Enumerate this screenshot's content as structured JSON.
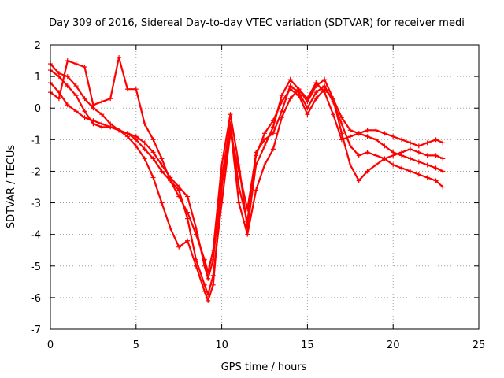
{
  "chart_data": {
    "type": "scatter",
    "title": "Day 309 of 2016, Sidereal Day-to-day VTEC variation (SDTVAR) for receiver medi",
    "xlabel": "GPS time / hours",
    "ylabel": "SDTVAR / TECUs",
    "xlim": [
      0,
      25
    ],
    "ylim": [
      -7,
      2
    ],
    "xticks": [
      "0",
      "5",
      "10",
      "15",
      "20",
      "25"
    ],
    "yticks": [
      "2",
      "1",
      "0",
      "-1",
      "-2",
      "-3",
      "-4",
      "-5",
      "-6",
      "-7"
    ],
    "grid": true,
    "marker": "plus",
    "color": "#ff0000",
    "series": [
      {
        "x": [
          0,
          0.5,
          1.0,
          1.5,
          2.0,
          2.5,
          3.0,
          3.5,
          4.0,
          4.5,
          5.0,
          5.5,
          6.0,
          6.5,
          7.0,
          7.5,
          8.0,
          8.5,
          9.0,
          9.2,
          9.5,
          10.0,
          10.5,
          11.0,
          11.5,
          12.0,
          12.5,
          13.0,
          13.5,
          14.0,
          14.5,
          15.0,
          15.5,
          16.0,
          16.5,
          17.0,
          17.5,
          18.0,
          18.5,
          19.0,
          19.5,
          20.0,
          20.5,
          21.0,
          21.5,
          22.0,
          22.5,
          22.9
        ],
        "y": [
          1.4,
          1.1,
          1.0,
          0.7,
          0.3,
          0.0,
          -0.2,
          -0.5,
          -0.7,
          -0.8,
          -1.0,
          -1.3,
          -1.6,
          -2.0,
          -2.3,
          -2.6,
          -3.5,
          -4.8,
          -5.6,
          -5.9,
          -5.3,
          -3.0,
          -0.8,
          -2.0,
          -3.2,
          -1.5,
          -0.8,
          -0.4,
          0.2,
          0.6,
          0.4,
          -0.2,
          0.3,
          0.6,
          0.3,
          -0.3,
          -0.7,
          -0.8,
          -0.9,
          -1.0,
          -1.2,
          -1.4,
          -1.5,
          -1.6,
          -1.7,
          -1.8,
          -1.9,
          -2.0
        ]
      },
      {
        "x": [
          0,
          0.5,
          1.0,
          1.5,
          2.0,
          2.5,
          3.0,
          3.5,
          4.0,
          4.5,
          5.0,
          5.5,
          6.0,
          6.5,
          7.0,
          7.5,
          8.0,
          8.5,
          9.0,
          9.2,
          9.5,
          10.0,
          10.5,
          11.0,
          11.5,
          12.0,
          12.5,
          13.0,
          13.5,
          14.0,
          14.5,
          15.0,
          15.5,
          16.0,
          16.5,
          17.0,
          17.5,
          18.0,
          18.5,
          19.0,
          19.5,
          20.0,
          20.5,
          21.0,
          21.5,
          22.0,
          22.5,
          22.9
        ],
        "y": [
          0.8,
          0.5,
          0.1,
          -0.1,
          -0.3,
          -0.4,
          -0.5,
          -0.6,
          -0.7,
          -0.9,
          -1.2,
          -1.6,
          -2.2,
          -3.0,
          -3.8,
          -4.4,
          -4.2,
          -5.0,
          -5.8,
          -6.1,
          -5.6,
          -2.5,
          -0.6,
          -3.0,
          -4.0,
          -2.6,
          -1.8,
          -1.3,
          -0.3,
          0.3,
          0.6,
          0.2,
          0.7,
          0.9,
          0.3,
          -0.8,
          -1.8,
          -2.3,
          -2.0,
          -1.8,
          -1.6,
          -1.5,
          -1.4,
          -1.3,
          -1.4,
          -1.5,
          -1.5,
          -1.6
        ]
      },
      {
        "x": [
          0,
          0.5,
          1.0,
          1.5,
          2.0,
          2.5,
          3.0,
          3.5,
          4.0,
          4.5,
          5.0,
          5.5,
          6.0,
          6.5,
          7.0,
          7.5,
          8.0,
          8.5,
          9.0,
          9.2,
          9.5,
          10.0,
          10.5,
          11.0,
          11.5,
          12.0,
          12.5,
          13.0,
          13.5,
          14.0,
          14.5,
          15.0,
          15.5,
          16.0,
          16.5,
          17.0,
          17.5,
          18.0,
          18.5,
          19.0,
          19.5,
          20.0,
          20.5,
          21.0,
          21.5,
          22.0,
          22.5,
          22.9
        ],
        "y": [
          0.5,
          0.3,
          1.5,
          1.4,
          1.3,
          0.1,
          0.2,
          0.3,
          1.6,
          0.6,
          0.6,
          -0.5,
          -1.0,
          -1.6,
          -2.3,
          -2.8,
          -3.3,
          -4.0,
          -4.8,
          -5.2,
          -4.5,
          -1.8,
          -0.2,
          -1.8,
          -3.8,
          -1.8,
          -1.2,
          -0.6,
          0.4,
          0.9,
          0.6,
          0.3,
          0.8,
          0.5,
          -0.2,
          -1.0,
          -0.9,
          -0.8,
          -0.7,
          -0.7,
          -0.8,
          -0.9,
          -1.0,
          -1.1,
          -1.2,
          -1.1,
          -1.0,
          -1.1
        ]
      },
      {
        "x": [
          0,
          0.5,
          1.0,
          1.5,
          2.0,
          2.5,
          3.0,
          3.5,
          4.0,
          4.5,
          5.0,
          5.5,
          6.0,
          6.5,
          7.0,
          7.5,
          8.0,
          8.5,
          9.0,
          9.2,
          9.5,
          10.0,
          10.5,
          11.0,
          11.5,
          12.0,
          12.5,
          13.0,
          13.5,
          14.0,
          14.5,
          15.0,
          15.5,
          16.0,
          16.5,
          17.0,
          17.5,
          18.0,
          18.5,
          19.0,
          19.5,
          20.0,
          20.5,
          21.0,
          21.5,
          22.0,
          22.5,
          22.9
        ],
        "y": [
          1.2,
          1.0,
          0.7,
          0.4,
          -0.1,
          -0.5,
          -0.6,
          -0.6,
          -0.7,
          -0.8,
          -0.9,
          -1.1,
          -1.4,
          -1.8,
          -2.2,
          -2.5,
          -2.8,
          -3.8,
          -5.0,
          -5.4,
          -4.8,
          -2.2,
          -0.5,
          -2.5,
          -3.6,
          -1.4,
          -1.0,
          -0.8,
          -0.1,
          0.7,
          0.5,
          0.0,
          0.5,
          0.7,
          0.2,
          -0.5,
          -1.2,
          -1.5,
          -1.4,
          -1.5,
          -1.6,
          -1.8,
          -1.9,
          -2.0,
          -2.1,
          -2.2,
          -2.3,
          -2.5
        ]
      }
    ]
  }
}
